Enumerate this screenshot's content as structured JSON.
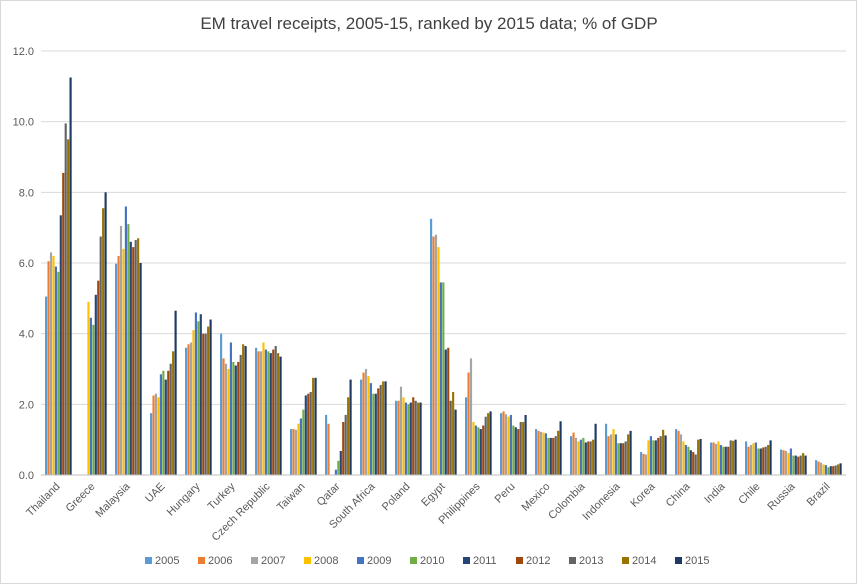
{
  "chart_data": {
    "type": "bar",
    "title": "EM travel receipts, 2005-15, ranked by 2015 data; % of GDP",
    "xlabel": "",
    "ylabel": "",
    "ylim": [
      0,
      12
    ],
    "yticks": [
      "0.0",
      "2.0",
      "4.0",
      "6.0",
      "8.0",
      "10.0",
      "12.0"
    ],
    "ytick_values": [
      0,
      2,
      4,
      6,
      8,
      10,
      12
    ],
    "grid": true,
    "legend_position": "bottom",
    "categories": [
      "Thailand",
      "Greece",
      "Malaysia",
      "UAE",
      "Hungary",
      "Turkey",
      "Czech Republic",
      "Taiwan",
      "Qatar",
      "South Africa",
      "Poland",
      "Egypt",
      "Philippines",
      "Peru",
      "Mexico",
      "Colombia",
      "Indonesia",
      "Korea",
      "China",
      "India",
      "Chile",
      "Russia",
      "Brazil"
    ],
    "series": [
      {
        "name": "2005",
        "color": "#5b9bd5",
        "values": [
          5.05,
          null,
          5.98,
          1.75,
          3.6,
          4.0,
          3.6,
          1.3,
          1.7,
          2.7,
          2.1,
          7.25,
          2.2,
          1.75,
          1.3,
          1.1,
          1.45,
          0.65,
          1.3,
          0.92,
          0.95,
          0.72,
          0.42
        ]
      },
      {
        "name": "2006",
        "color": "#ed7d31",
        "values": [
          6.05,
          null,
          6.2,
          2.25,
          3.7,
          3.3,
          3.5,
          1.3,
          1.45,
          2.9,
          2.1,
          6.75,
          2.9,
          1.8,
          1.25,
          1.2,
          1.1,
          0.6,
          1.25,
          0.92,
          0.8,
          0.7,
          0.38
        ]
      },
      {
        "name": "2007",
        "color": "#a5a5a5",
        "values": [
          6.3,
          null,
          7.05,
          2.3,
          3.75,
          3.15,
          3.5,
          1.28,
          null,
          3.0,
          2.5,
          6.8,
          3.3,
          1.72,
          1.22,
          1.05,
          1.15,
          0.58,
          1.15,
          0.88,
          0.85,
          0.68,
          0.35
        ]
      },
      {
        "name": "2008",
        "color": "#ffc000",
        "values": [
          6.2,
          4.9,
          6.4,
          2.2,
          4.1,
          3.0,
          3.75,
          1.45,
          null,
          2.8,
          2.2,
          6.45,
          1.5,
          1.65,
          1.2,
          0.95,
          1.3,
          0.98,
          0.95,
          0.95,
          0.9,
          0.62,
          0.3
        ]
      },
      {
        "name": "2009",
        "color": "#4472c4",
        "values": [
          5.9,
          4.45,
          7.6,
          2.85,
          4.6,
          3.75,
          3.55,
          1.6,
          0.15,
          2.6,
          2.05,
          5.45,
          1.4,
          1.7,
          1.18,
          1.0,
          1.15,
          1.1,
          0.85,
          0.85,
          0.92,
          0.75,
          0.28
        ]
      },
      {
        "name": "2010",
        "color": "#70ad47",
        "values": [
          5.75,
          4.25,
          7.1,
          2.95,
          4.35,
          3.2,
          3.5,
          1.85,
          0.4,
          2.3,
          2.0,
          5.45,
          1.35,
          1.4,
          1.05,
          1.05,
          0.9,
          0.98,
          0.8,
          0.8,
          0.75,
          0.55,
          0.22
        ]
      },
      {
        "name": "2011",
        "color": "#264478",
        "values": [
          7.35,
          5.1,
          6.6,
          2.7,
          4.55,
          3.1,
          3.45,
          2.25,
          0.68,
          2.3,
          2.05,
          3.55,
          1.3,
          1.35,
          1.05,
          0.92,
          0.9,
          0.98,
          0.7,
          0.8,
          0.75,
          0.55,
          0.25
        ]
      },
      {
        "name": "2012",
        "color": "#9e480e",
        "values": [
          8.55,
          5.5,
          6.45,
          2.95,
          4.0,
          3.2,
          3.55,
          2.3,
          1.5,
          2.45,
          2.2,
          3.6,
          1.4,
          1.3,
          1.05,
          0.95,
          0.9,
          1.05,
          0.65,
          0.8,
          0.78,
          0.52,
          0.25
        ]
      },
      {
        "name": "2013",
        "color": "#636363",
        "values": [
          9.95,
          6.75,
          6.65,
          3.15,
          4.0,
          3.4,
          3.65,
          2.35,
          1.7,
          2.55,
          2.1,
          2.1,
          1.65,
          1.5,
          1.1,
          0.95,
          0.95,
          1.1,
          0.58,
          0.98,
          0.8,
          0.55,
          0.27
        ]
      },
      {
        "name": "2014",
        "color": "#997300",
        "values": [
          9.5,
          7.55,
          6.7,
          3.5,
          4.2,
          3.7,
          3.45,
          2.75,
          2.2,
          2.65,
          2.05,
          2.35,
          1.75,
          1.5,
          1.25,
          1.0,
          1.15,
          1.28,
          1.0,
          0.97,
          0.85,
          0.62,
          0.3
        ]
      },
      {
        "name": "2015",
        "color": "#203864",
        "values": [
          11.25,
          8.0,
          6.0,
          4.65,
          4.4,
          3.65,
          3.35,
          2.75,
          2.7,
          2.65,
          2.05,
          1.85,
          1.8,
          1.7,
          1.52,
          1.45,
          1.25,
          1.12,
          1.02,
          1.0,
          0.98,
          0.55,
          0.33
        ]
      }
    ]
  }
}
